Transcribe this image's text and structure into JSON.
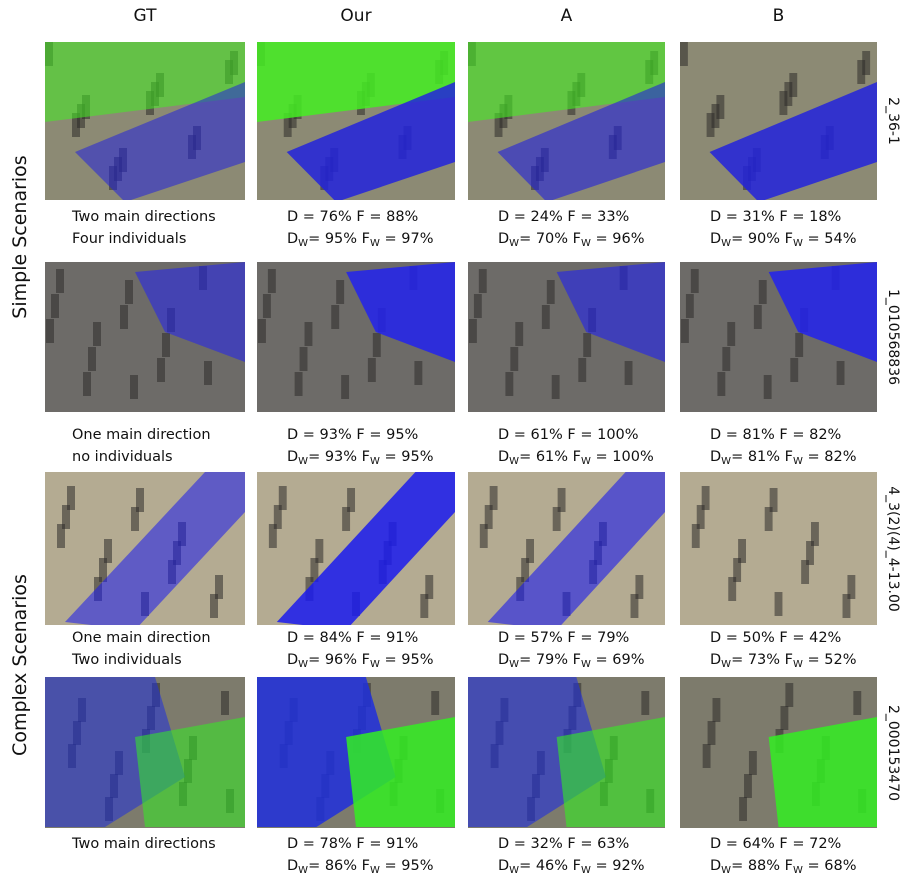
{
  "header": {
    "columns": [
      "GT",
      "Our",
      "A",
      "B"
    ]
  },
  "groups": [
    {
      "label": "Simple Scenarios"
    },
    {
      "label": "Complex Scenarios"
    }
  ],
  "metric_labels": {
    "d": "D",
    "f": "F",
    "w": "W",
    "eq": "="
  },
  "rows": [
    {
      "id": "2_36-1",
      "caption": [
        "Two main directions",
        "Four individuals"
      ],
      "results": [
        {
          "d": "76%",
          "f": "88%",
          "dw": "95%",
          "fw": "97%"
        },
        {
          "d": "24%",
          "f": "33%",
          "dw": "70%",
          "fw": "96%"
        },
        {
          "d": "31%",
          "f": "18%",
          "dw": "90%",
          "fw": "54%"
        }
      ]
    },
    {
      "id": "1_010568836",
      "caption": [
        "One main direction",
        "no individuals"
      ],
      "results": [
        {
          "d": "93%",
          "f": "95%",
          "dw": "93%",
          "fw": "95%"
        },
        {
          "d": "61%",
          "f": "100%",
          "dw": "61%",
          "fw": "100%"
        },
        {
          "d": "81%",
          "f": "82%",
          "dw": "81%",
          "fw": "82%"
        }
      ]
    },
    {
      "id": "4_3(2)(4)_4-13.00",
      "caption": [
        "One main direction",
        "Two individuals"
      ],
      "results": [
        {
          "d": "84%",
          "f": "91%",
          "dw": "96%",
          "fw": "95%"
        },
        {
          "d": "57%",
          "f": "79%",
          "dw": "79%",
          "fw": "69%"
        },
        {
          "d": "50%",
          "f": "42%",
          "dw": "73%",
          "fw": "52%"
        }
      ]
    },
    {
      "id": "2_000153470",
      "caption": [
        "Two main directions"
      ],
      "results": [
        {
          "d": "78%",
          "f": "91%",
          "dw": "86%",
          "fw": "95%"
        },
        {
          "d": "32%",
          "f": "63%",
          "dw": "46%",
          "fw": "92%"
        },
        {
          "d": "64%",
          "f": "72%",
          "dw": "88%",
          "fw": "68%"
        }
      ]
    }
  ]
}
